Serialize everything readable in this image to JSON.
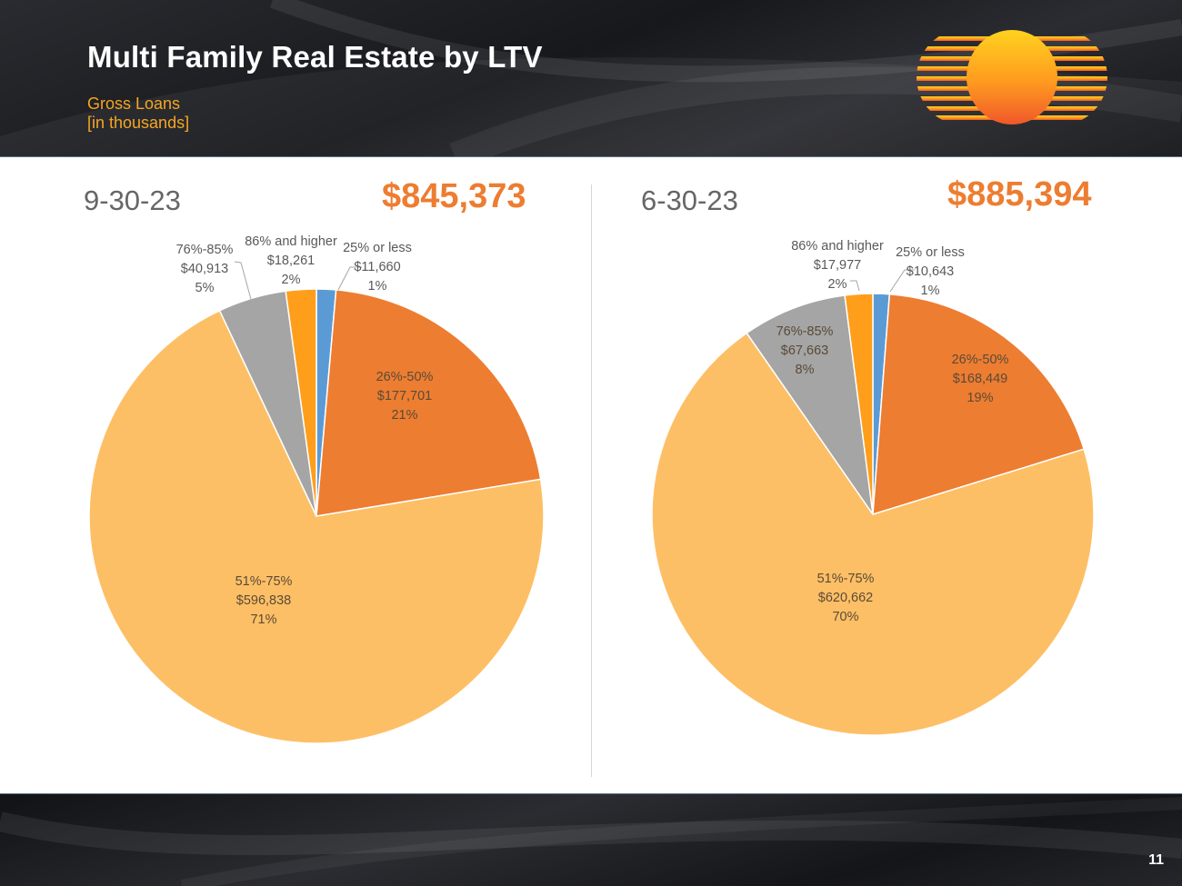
{
  "header": {
    "title": "Multi Family Real Estate by LTV",
    "subtitle_line1": "Gross Loans",
    "subtitle_line2": "[in thousands]"
  },
  "colors": {
    "blue": "#5b9bd5",
    "orange": "#ed7d31",
    "light_orange": "#fdbf65",
    "gray": "#a5a5a5",
    "bright_orange": "#ff9e1b"
  },
  "chart_data": [
    {
      "type": "pie",
      "title": "9-30-23",
      "total": "$845,373",
      "slices": [
        {
          "label": "25% or less",
          "amount": "$11,660",
          "value": 11660,
          "pct": "1%",
          "color": "#5b9bd5"
        },
        {
          "label": "26%-50%",
          "amount": "$177,701",
          "value": 177701,
          "pct": "21%",
          "color": "#ed7d31"
        },
        {
          "label": "51%-75%",
          "amount": "$596,838",
          "value": 596838,
          "pct": "71%",
          "color": "#fdbf65"
        },
        {
          "label": "76%-85%",
          "amount": "$40,913",
          "value": 40913,
          "pct": "5%",
          "color": "#a5a5a5"
        },
        {
          "label": "86% and higher",
          "amount": "$18,261",
          "value": 18261,
          "pct": "2%",
          "color": "#ff9e1b"
        }
      ]
    },
    {
      "type": "pie",
      "title": "6-30-23",
      "total": "$885,394",
      "slices": [
        {
          "label": "25% or less",
          "amount": "$10,643",
          "value": 10643,
          "pct": "1%",
          "color": "#5b9bd5"
        },
        {
          "label": "26%-50%",
          "amount": "$168,449",
          "value": 168449,
          "pct": "19%",
          "color": "#ed7d31"
        },
        {
          "label": "51%-75%",
          "amount": "$620,662",
          "value": 620662,
          "pct": "70%",
          "color": "#fdbf65"
        },
        {
          "label": "76%-85%",
          "amount": "$67,663",
          "value": 67663,
          "pct": "8%",
          "color": "#a5a5a5"
        },
        {
          "label": "86% and higher",
          "amount": "$17,977",
          "value": 17977,
          "pct": "2%",
          "color": "#ff9e1b"
        }
      ]
    }
  ],
  "footer": {
    "page_number": "11"
  }
}
